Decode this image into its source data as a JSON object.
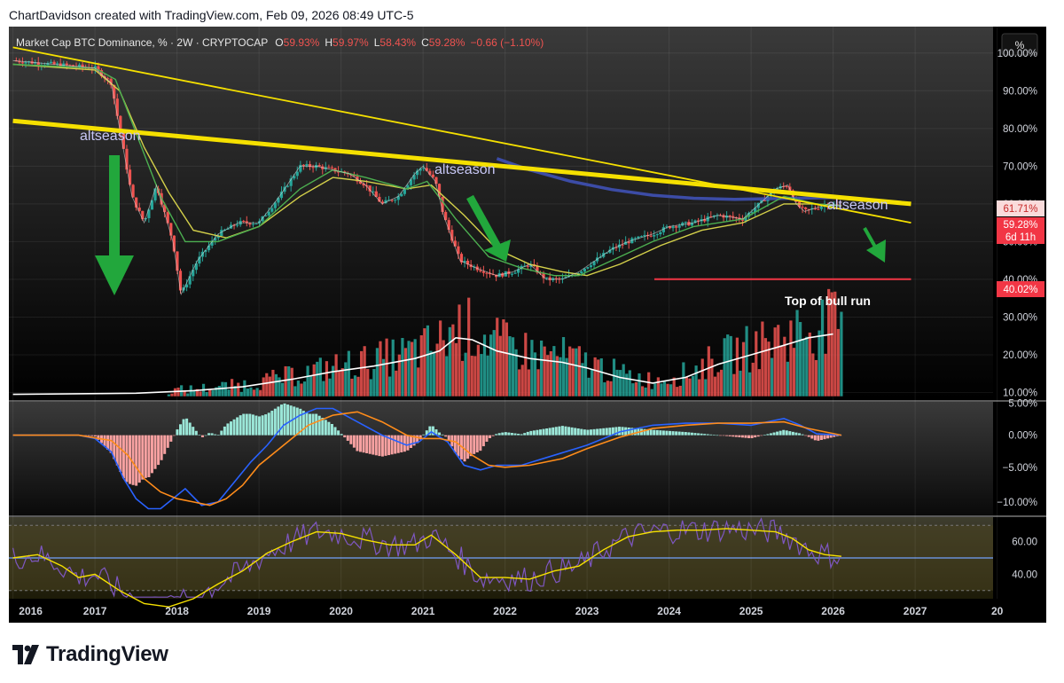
{
  "header_text": "ChartDavidson created with TradingView.com, Feb 09, 2026 08:49 UTC-5",
  "legend": {
    "title": "Market Cap BTC Dominance, % · 2W · CRYPTOCAP",
    "o_label": "O",
    "o_value": "59.93%",
    "h_label": "H",
    "h_value": "59.97%",
    "l_label": "L",
    "l_value": "58.43%",
    "c_label": "C",
    "c_value": "59.28%",
    "change": "−0.66 (−1.10%)"
  },
  "scale_button": "%",
  "brand": "TradingView",
  "colors": {
    "background": "#000000",
    "up": "#26a69a",
    "down": "#ef5350",
    "trendline": "#f5e000",
    "ma_blue": "#3f51b5",
    "red_level": "#f23645",
    "arrow": "#22a73c"
  },
  "annotations": {
    "altseason_1": "altseason",
    "altseason_2": "altseason",
    "altseason_3": "altseason",
    "top_of_bull_run": "Top of bull run"
  },
  "badges": {
    "ma_value": "61.71%",
    "price_value": "59.28%",
    "countdown": "6d 11h",
    "level_value": "40.02%"
  },
  "chart_data": {
    "type": "line",
    "main_pane": {
      "y_ticks": [
        "100.00%",
        "90.00%",
        "80.00%",
        "70.00%",
        "60.00%",
        "50.00%",
        "40.00%",
        "30.00%",
        "20.00%",
        "10.00%"
      ],
      "ylim": [
        8,
        107
      ],
      "price": {
        "x": [
          2016.0,
          2016.5,
          2017.0,
          2017.2,
          2017.3,
          2017.45,
          2017.6,
          2017.75,
          2017.95,
          2018.05,
          2018.25,
          2018.5,
          2018.75,
          2019.0,
          2019.25,
          2019.5,
          2019.7,
          2019.9,
          2020.1,
          2020.3,
          2020.5,
          2020.7,
          2020.9,
          2021.0,
          2021.15,
          2021.25,
          2021.45,
          2021.65,
          2021.9,
          2022.1,
          2022.3,
          2022.5,
          2022.7,
          2022.9,
          2023.1,
          2023.3,
          2023.5,
          2023.8,
          2024.0,
          2024.3,
          2024.6,
          2024.9,
          2025.1,
          2025.3,
          2025.45,
          2025.55,
          2025.65,
          2025.8,
          2025.95,
          2026.1
        ],
        "y": [
          98,
          97,
          96,
          92,
          80,
          62,
          55,
          65,
          50,
          36,
          45,
          52,
          55,
          55,
          62,
          70,
          70,
          69,
          68,
          65,
          60,
          62,
          68,
          70,
          66,
          57,
          45,
          43,
          41,
          42,
          44,
          40,
          40,
          42,
          45,
          48,
          50,
          52,
          54,
          55,
          57,
          56,
          60,
          64,
          65,
          60,
          58,
          59,
          60,
          59.28
        ]
      },
      "ma_green": {
        "x": [
          2016.0,
          2017.0,
          2017.25,
          2017.55,
          2017.8,
          2018.1,
          2018.5,
          2019.0,
          2019.5,
          2019.9,
          2020.3,
          2020.8,
          2021.05,
          2021.4,
          2021.8,
          2022.2,
          2022.6,
          2022.9,
          2023.3,
          2023.8,
          2024.3,
          2024.9,
          2025.4,
          2025.8,
          2026.1
        ],
        "y": [
          97,
          96,
          93,
          76,
          62,
          50,
          50,
          54,
          64,
          69,
          67,
          64,
          66,
          56,
          46,
          43,
          41,
          41,
          45,
          50,
          54,
          56,
          62,
          60,
          59.5
        ]
      },
      "ma_yellow": {
        "x": [
          2016.0,
          2017.0,
          2017.3,
          2017.6,
          2017.9,
          2018.2,
          2018.6,
          2019.0,
          2019.5,
          2019.9,
          2020.3,
          2020.8,
          2021.1,
          2021.5,
          2021.9,
          2022.3,
          2022.7,
          2023.0,
          2023.4,
          2023.9,
          2024.4,
          2024.9,
          2025.4,
          2025.8,
          2026.1
        ],
        "y": [
          97,
          95.5,
          90,
          75,
          63,
          53,
          51,
          54,
          62,
          67,
          66,
          64,
          65,
          57,
          48,
          44,
          42,
          41,
          44,
          49,
          53,
          55,
          60,
          60,
          59.5
        ]
      },
      "ma_blue": {
        "x": [
          2021.9,
          2022.3,
          2022.8,
          2023.3,
          2023.8,
          2024.3,
          2024.8,
          2025.3,
          2025.8,
          2026.1
        ],
        "y": [
          72,
          69,
          66,
          63.8,
          62.3,
          61.5,
          61.2,
          61.4,
          61.6,
          61.71
        ]
      },
      "trendline_thick": {
        "x": [
          2016.0,
          2026.95
        ],
        "y": [
          82,
          60
        ]
      },
      "trendline_thin": {
        "x": [
          2016.0,
          2026.95
        ],
        "y": [
          101.5,
          55
        ]
      },
      "level_line": {
        "x": [
          2023.82,
          2026.95
        ],
        "y": [
          40.02,
          40.02
        ]
      },
      "volume_ma": {
        "x": [
          2016.0,
          2017.5,
          2018.2,
          2018.8,
          2019.4,
          2019.9,
          2020.4,
          2020.9,
          2021.2,
          2021.4,
          2021.6,
          2021.9,
          2022.3,
          2022.7,
          2023.0,
          2023.4,
          2023.8,
          2024.2,
          2024.6,
          2025.0,
          2025.4,
          2025.7,
          2026.0
        ],
        "y": [
          9.5,
          9.8,
          10.5,
          11.5,
          13.5,
          15.5,
          17.0,
          19.0,
          21.0,
          24.5,
          24.0,
          21.0,
          19.0,
          18.0,
          16.5,
          14.0,
          12.5,
          14.0,
          17.5,
          20.0,
          22.5,
          24.5,
          25.5
        ]
      }
    },
    "macd_pane": {
      "y_ticks": [
        "5.00%",
        "0.00%",
        "−5.00%",
        "−10.00%"
      ],
      "ylim": [
        -12,
        5
      ],
      "macd": {
        "x": [
          2016.0,
          2016.8,
          2017.0,
          2017.2,
          2017.35,
          2017.5,
          2017.65,
          2017.8,
          2017.95,
          2018.1,
          2018.3,
          2018.5,
          2018.7,
          2018.9,
          2019.1,
          2019.3,
          2019.5,
          2019.7,
          2019.9,
          2020.2,
          2020.5,
          2020.8,
          2020.95,
          2021.1,
          2021.3,
          2021.5,
          2021.7,
          2021.9,
          2022.2,
          2022.6,
          2023.0,
          2023.4,
          2023.8,
          2024.2,
          2024.6,
          2025.0,
          2025.4,
          2025.6,
          2025.8,
          2026.1
        ],
        "y": [
          0,
          0,
          -0.5,
          -2.5,
          -6.5,
          -9.5,
          -11,
          -11,
          -9.5,
          -8,
          -10.5,
          -10,
          -7,
          -4,
          -1.5,
          1.5,
          3,
          4,
          4,
          2,
          0,
          -1.5,
          -1,
          0.5,
          -1,
          -4.5,
          -5.2,
          -4.5,
          -4.5,
          -3,
          -1.5,
          0.5,
          1.5,
          1.8,
          1.8,
          1.5,
          2.5,
          1.5,
          0.2,
          0
        ]
      },
      "signal": {
        "x": [
          2016.0,
          2016.8,
          2017.2,
          2017.4,
          2017.6,
          2017.8,
          2018.0,
          2018.2,
          2018.4,
          2018.6,
          2018.8,
          2019.0,
          2019.3,
          2019.6,
          2019.9,
          2020.2,
          2020.5,
          2020.8,
          2021.0,
          2021.2,
          2021.4,
          2021.6,
          2021.8,
          2022.0,
          2022.3,
          2022.7,
          2023.0,
          2023.4,
          2023.8,
          2024.2,
          2024.6,
          2025.0,
          2025.4,
          2025.7,
          2026.1
        ],
        "y": [
          0,
          0,
          -0.8,
          -3,
          -6.5,
          -8.5,
          -9.5,
          -10,
          -10.5,
          -9.5,
          -7.5,
          -4.5,
          -1.5,
          1.5,
          3,
          3.5,
          2,
          0,
          -0.5,
          -0.5,
          -1,
          -3,
          -4.5,
          -4.8,
          -4.5,
          -3.5,
          -2,
          -0.3,
          1,
          1.5,
          1.8,
          1.8,
          2,
          1,
          0
        ]
      },
      "histogram_note": "bars between macd and signal"
    },
    "rsi_pane": {
      "y_ticks": [
        "60.00",
        "40.00"
      ],
      "ylim": [
        25,
        75
      ],
      "rsi_ma": {
        "x": [
          2016.0,
          2016.3,
          2016.6,
          2016.8,
          2017.0,
          2017.3,
          2017.6,
          2017.9,
          2018.2,
          2018.5,
          2018.8,
          2019.1,
          2019.4,
          2019.7,
          2020.0,
          2020.3,
          2020.6,
          2020.9,
          2021.1,
          2021.4,
          2021.7,
          2022.0,
          2022.3,
          2022.6,
          2022.9,
          2023.2,
          2023.5,
          2023.8,
          2024.1,
          2024.4,
          2024.7,
          2025.0,
          2025.3,
          2025.5,
          2025.7,
          2025.9,
          2026.1
        ],
        "y": [
          50,
          52,
          45,
          38,
          40,
          30,
          22,
          20,
          25,
          34,
          42,
          53,
          60,
          66,
          65,
          61,
          58,
          58,
          64,
          52,
          38,
          38,
          37,
          42,
          45,
          55,
          63,
          66,
          67,
          67,
          68,
          67,
          66,
          62,
          55,
          52,
          51
        ]
      },
      "bands": {
        "upper": 70,
        "mid": 50,
        "lower": 30
      }
    },
    "x_axis": {
      "ticks": [
        "2016",
        "2017",
        "2018",
        "2019",
        "2020",
        "2021",
        "2022",
        "2023",
        "2024",
        "2025",
        "2026",
        "2027",
        "20"
      ],
      "xlim": [
        2015.95,
        2027.95
      ]
    }
  }
}
